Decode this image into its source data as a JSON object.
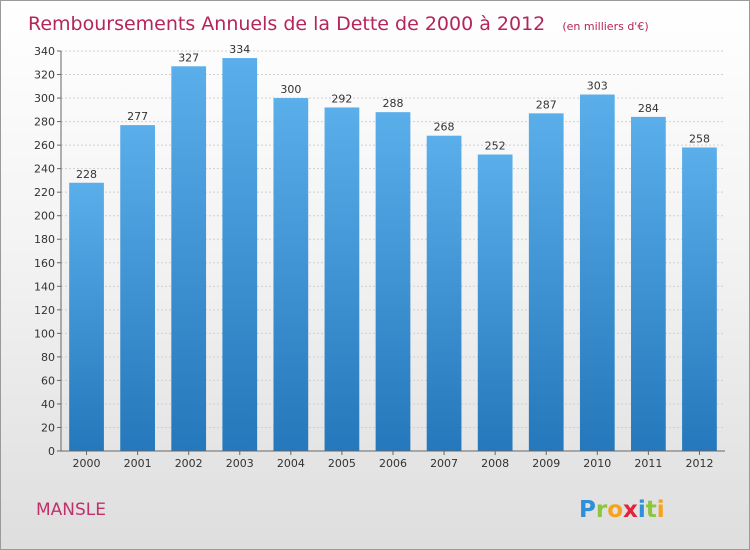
{
  "title": "Remboursements Annuels de la Dette de 2000 à 2012",
  "unit_note": "(en milliers d'€)",
  "commune": "MANSLE",
  "logo": {
    "text": "Proxiti",
    "letters": [
      {
        "ch": "P",
        "color": "#2f8fd8"
      },
      {
        "ch": "r",
        "color": "#8cc63f"
      },
      {
        "ch": "o",
        "color": "#f7a21b"
      },
      {
        "ch": "x",
        "color": "#e5213b"
      },
      {
        "ch": "i",
        "color": "#2f8fd8"
      },
      {
        "ch": "t",
        "color": "#8cc63f"
      },
      {
        "ch": "i",
        "color": "#f7a21b"
      }
    ]
  },
  "colors": {
    "title": "#b5245a",
    "bar_top": "#5aaeea",
    "bar_bottom": "#2478bb",
    "grid": "#d0d0d0"
  },
  "chart_data": {
    "type": "bar",
    "title": "Remboursements Annuels de la Dette de 2000 à 2012",
    "xlabel": "",
    "ylabel": "",
    "categories": [
      "2000",
      "2001",
      "2002",
      "2003",
      "2004",
      "2005",
      "2006",
      "2007",
      "2008",
      "2009",
      "2010",
      "2011",
      "2012"
    ],
    "values": [
      228,
      277,
      327,
      334,
      300,
      292,
      288,
      268,
      252,
      287,
      303,
      284,
      258
    ],
    "ylim": [
      0,
      340
    ],
    "ytick_step": 20,
    "grid": true,
    "legend": "none"
  }
}
